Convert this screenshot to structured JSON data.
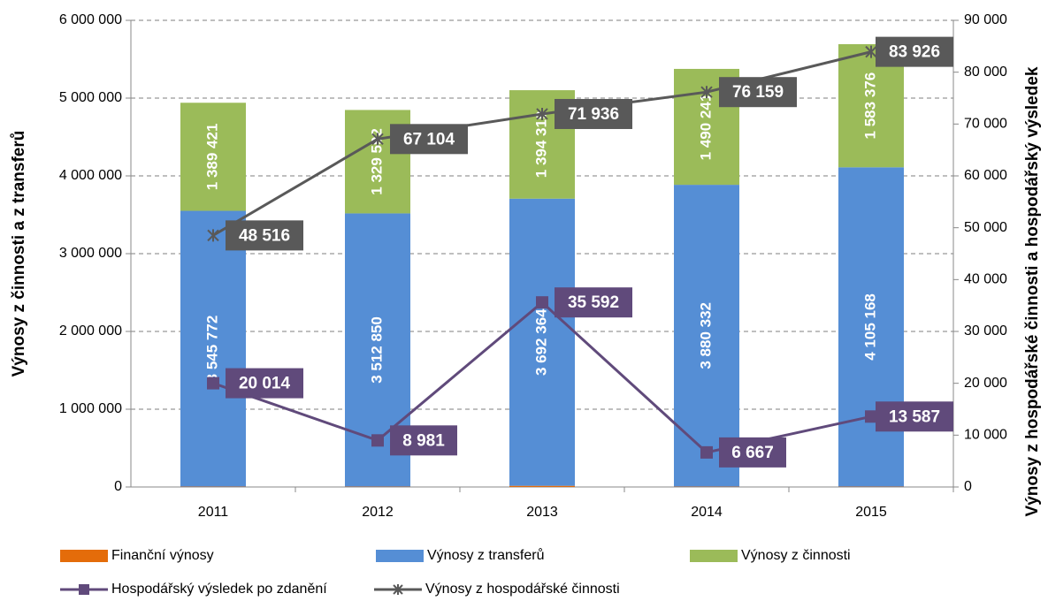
{
  "chart_data": {
    "type": "bar",
    "stacked": true,
    "categories": [
      "2011",
      "2012",
      "2013",
      "2014",
      "2015"
    ],
    "series": [
      {
        "name": "Finanční výnosy",
        "type": "bar",
        "color": "#e46c0a",
        "values": [
          5000,
          5000,
          15000,
          5000,
          5000
        ]
      },
      {
        "name": "Výnosy z transferů",
        "type": "bar",
        "color": "#558ed5",
        "values": [
          3545772,
          3512850,
          3692364,
          3880332,
          4105168
        ],
        "value_labels": [
          "3 545 772",
          "3 512 850",
          "3 692 364",
          "3 880 332",
          "4 105 168"
        ]
      },
      {
        "name": "Výnosy z činnosti",
        "type": "bar",
        "color": "#9bbb59",
        "values": [
          1389421,
          1329592,
          1394319,
          1490241,
          1583376
        ],
        "value_labels": [
          "1 389 421",
          "1 329 592",
          "1 394 319",
          "1 490 241",
          "1 583 376"
        ]
      },
      {
        "name": "Hospodářský výsledek po zdanění",
        "type": "line",
        "marker": "square",
        "axis": "y2",
        "color": "#604a7b",
        "values": [
          20014,
          8981,
          35592,
          6667,
          13587
        ],
        "value_labels": [
          "20 014",
          "8 981",
          "35 592",
          "6 667",
          "13 587"
        ]
      },
      {
        "name": "Výnosy z hospodářské činnosti",
        "type": "line",
        "marker": "star",
        "axis": "y2",
        "color": "#595959",
        "values": [
          48516,
          67104,
          71936,
          76159,
          83926
        ],
        "value_labels": [
          "48 516",
          "67 104",
          "71 936",
          "76 159",
          "83 926"
        ]
      }
    ],
    "ylabel": "Výnosy z činnosti a z transferů",
    "y2label": "Výnosy z hospodářské činnosti a hospodářský výsledek",
    "ylim": [
      0,
      6000000
    ],
    "yticks": [
      0,
      {
        "value": 1000000,
        "label": "1 000 000"
      },
      {
        "value": 2000000,
        "label": "2 000 000"
      },
      {
        "value": 3000000,
        "label": "3 000 000"
      },
      {
        "value": 4000000,
        "label": "4 000 000"
      },
      {
        "value": 5000000,
        "label": "5 000 000"
      },
      {
        "value": 6000000,
        "label": "6 000 000"
      }
    ],
    "y2lim": [
      0,
      90000
    ],
    "y2ticks": [
      0,
      {
        "value": 10000,
        "label": "10 000"
      },
      {
        "value": 20000,
        "label": "20 000"
      },
      {
        "value": 30000,
        "label": "30 000"
      },
      {
        "value": 40000,
        "label": "40 000"
      },
      {
        "value": 50000,
        "label": "50 000"
      },
      {
        "value": 60000,
        "label": "60 000"
      },
      {
        "value": 70000,
        "label": "70 000"
      },
      {
        "value": 80000,
        "label": "80 000"
      },
      {
        "value": 90000,
        "label": "90 000"
      }
    ],
    "grid": true,
    "legend": "bottom"
  }
}
